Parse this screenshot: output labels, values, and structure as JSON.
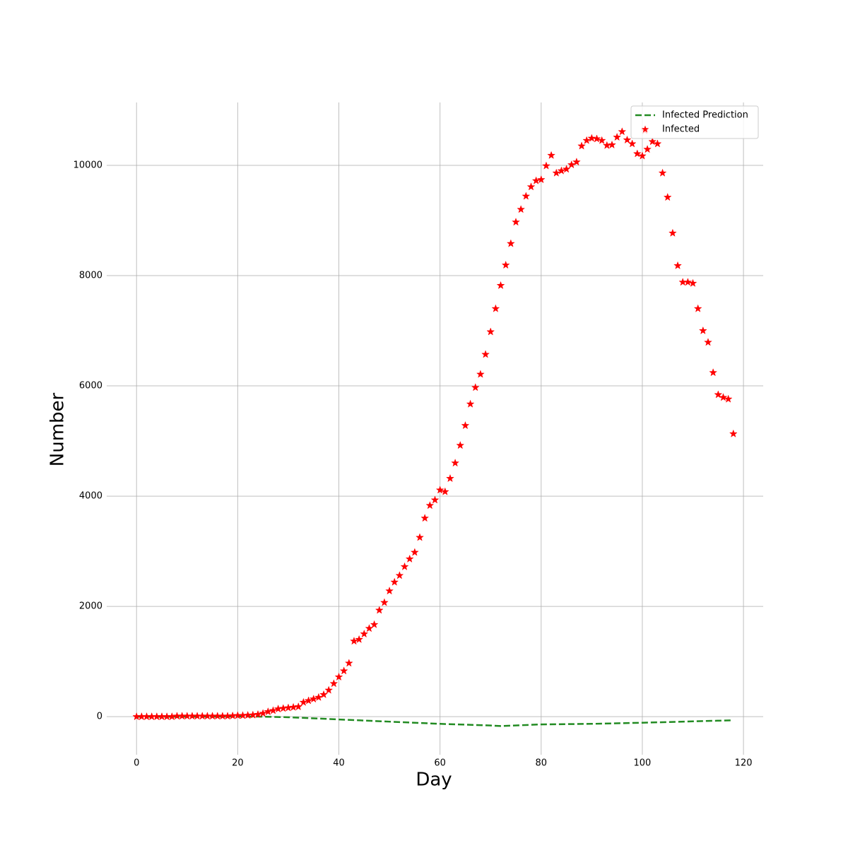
{
  "chart_data": {
    "type": "scatter",
    "xlabel": "Day",
    "ylabel": "Number",
    "xlim": [
      -5.9,
      123.9
    ],
    "ylim": [
      -690,
      11140
    ],
    "xticks": [
      0,
      20,
      40,
      60,
      80,
      100,
      120
    ],
    "yticks": [
      0,
      2000,
      4000,
      6000,
      8000,
      10000
    ],
    "grid": true,
    "legend": "upper right",
    "series": [
      {
        "name": "Infected Prediction",
        "color": "#228b22",
        "style": "dashed-line",
        "x": [
          0,
          10,
          20,
          25,
          30,
          40,
          50,
          60,
          70,
          72,
          80,
          90,
          100,
          110,
          118
        ],
        "values": [
          0,
          0,
          5,
          0,
          -10,
          -50,
          -90,
          -130,
          -160,
          -170,
          -140,
          -130,
          -110,
          -85,
          -65
        ]
      },
      {
        "name": "Infected",
        "color": "#ff0000",
        "style": "star",
        "x": [
          0,
          1,
          2,
          3,
          4,
          5,
          6,
          7,
          8,
          9,
          10,
          11,
          12,
          13,
          14,
          15,
          16,
          17,
          18,
          19,
          20,
          21,
          22,
          23,
          24,
          25,
          26,
          27,
          28,
          29,
          30,
          31,
          32,
          33,
          34,
          35,
          36,
          37,
          38,
          39,
          40,
          41,
          42,
          43,
          44,
          45,
          46,
          47,
          48,
          49,
          50,
          51,
          52,
          53,
          54,
          55,
          56,
          57,
          58,
          59,
          60,
          61,
          62,
          63,
          64,
          65,
          66,
          67,
          68,
          69,
          70,
          71,
          72,
          73,
          74,
          75,
          76,
          77,
          78,
          79,
          80,
          81,
          82,
          83,
          84,
          85,
          86,
          87,
          88,
          89,
          90,
          91,
          92,
          93,
          94,
          95,
          96,
          97,
          98,
          99,
          100,
          100.5,
          101,
          102,
          103,
          104,
          105,
          106,
          107,
          108,
          109,
          110,
          111,
          112,
          113,
          114,
          115,
          116,
          117,
          118
        ],
        "values": [
          0,
          0,
          0,
          0,
          0,
          0,
          0,
          0,
          10,
          10,
          10,
          10,
          10,
          10,
          10,
          10,
          10,
          10,
          10,
          15,
          20,
          20,
          25,
          30,
          40,
          60,
          90,
          110,
          140,
          150,
          160,
          170,
          180,
          260,
          290,
          320,
          350,
          400,
          480,
          600,
          720,
          830,
          970,
          1370,
          1400,
          1500,
          1600,
          1670,
          1930,
          2070,
          2280,
          2440,
          2560,
          2720,
          2860,
          2980,
          3250,
          3600,
          3830,
          3930,
          4110,
          4080,
          4320,
          4600,
          4920,
          5280,
          5670,
          5970,
          6210,
          6570,
          6980,
          7400,
          7820,
          8190,
          8580,
          8970,
          9200,
          9440,
          9610,
          9720,
          9740,
          9990,
          10180,
          9860,
          9900,
          9930,
          10010,
          10060,
          10350,
          10450,
          10490,
          10480,
          10450,
          10360,
          10370,
          10510,
          10610,
          10460,
          10390,
          10210,
          10170,
          10630,
          10290,
          10430,
          10390,
          9860,
          9420,
          8770,
          8180,
          7880,
          7880,
          7860,
          7400,
          7000,
          6790,
          6240,
          5840,
          5790,
          5760,
          5130
        ]
      }
    ]
  }
}
